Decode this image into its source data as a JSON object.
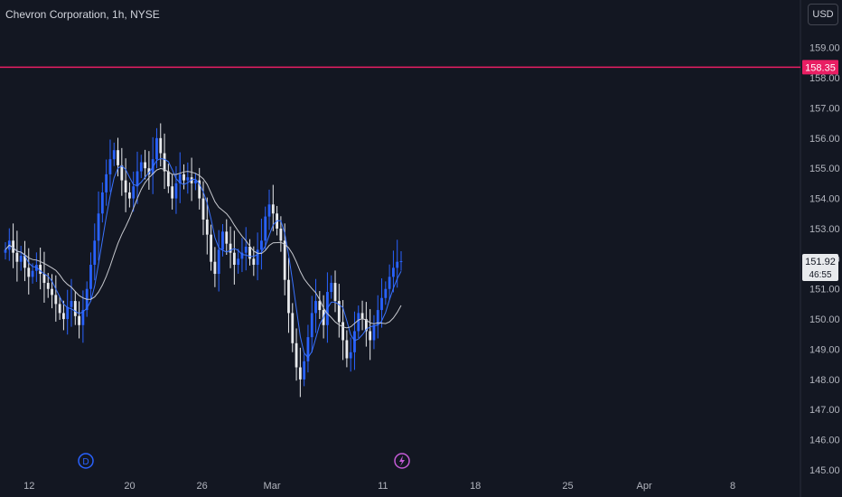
{
  "header": {
    "title": "Chevron Corporation, 1h, NYSE",
    "currency_label": "USD"
  },
  "colors": {
    "background": "#131722",
    "line_level": "#e91e63",
    "up": "#2962ff",
    "down": "#e8eaed",
    "ma_fast": "#3a73ff",
    "ma_slow": "#c7c9cf",
    "event_dividend": "#2962ff",
    "event_flash": "#c45bd6"
  },
  "markers": {
    "dividend_label": "D",
    "flash_icon": "lightning-icon"
  },
  "chart_data": {
    "type": "candlestick",
    "title": "Chevron Corporation, 1h, NYSE",
    "ylim": [
      145,
      159.8
    ],
    "y_ticks": [
      "145.00",
      "146.00",
      "147.00",
      "148.00",
      "149.00",
      "150.00",
      "151.00",
      "152.00",
      "153.00",
      "154.00",
      "155.00",
      "156.00",
      "157.00",
      "158.00",
      "159.00"
    ],
    "x_ticks": [
      {
        "label": "12",
        "t": 0.025
      },
      {
        "label": "20",
        "t": 0.15
      },
      {
        "label": "26",
        "t": 0.24
      },
      {
        "label": "Mar",
        "t": 0.327
      },
      {
        "label": "11",
        "t": 0.465
      },
      {
        "label": "18",
        "t": 0.58
      },
      {
        "label": "25",
        "t": 0.695
      },
      {
        "label": "Apr",
        "t": 0.79
      },
      {
        "label": "8",
        "t": 0.9
      }
    ],
    "level_line": {
      "value": 158.35,
      "label": "158.35"
    },
    "last_price": {
      "value": 151.92,
      "label": "151.92",
      "countdown": "46:55"
    },
    "closes": [
      152.3,
      152.6,
      152.2,
      151.9,
      152.1,
      151.7,
      151.4,
      151.6,
      151.8,
      151.5,
      151.2,
      151.0,
      150.8,
      150.5,
      150.2,
      150.0,
      150.4,
      150.6,
      150.1,
      149.8,
      150.3,
      151.0,
      151.8,
      152.6,
      153.5,
      154.2,
      154.8,
      155.3,
      155.6,
      155.1,
      154.6,
      154.2,
      154.0,
      154.4,
      154.9,
      155.2,
      155.0,
      154.8,
      155.3,
      156.0,
      155.5,
      154.9,
      154.4,
      154.0,
      154.5,
      154.8,
      154.6,
      154.7,
      154.5,
      154.6,
      154.0,
      153.3,
      152.8,
      151.9,
      151.5,
      152.3,
      152.9,
      152.5,
      152.2,
      151.8,
      152.0,
      152.2,
      152.4,
      152.0,
      151.8,
      152.3,
      152.6,
      153.4,
      153.8,
      153.5,
      153.0,
      152.6,
      151.3,
      150.2,
      149.2,
      148.4,
      148.0,
      148.6,
      149.4,
      150.2,
      150.6,
      150.3,
      149.8,
      150.9,
      151.2,
      150.6,
      149.9,
      149.3,
      148.7,
      148.9,
      149.6,
      150.2,
      150.0,
      149.6,
      149.3,
      149.8,
      150.3,
      150.7,
      151.0,
      151.4,
      151.7,
      151.9,
      151.92
    ],
    "legend": []
  }
}
